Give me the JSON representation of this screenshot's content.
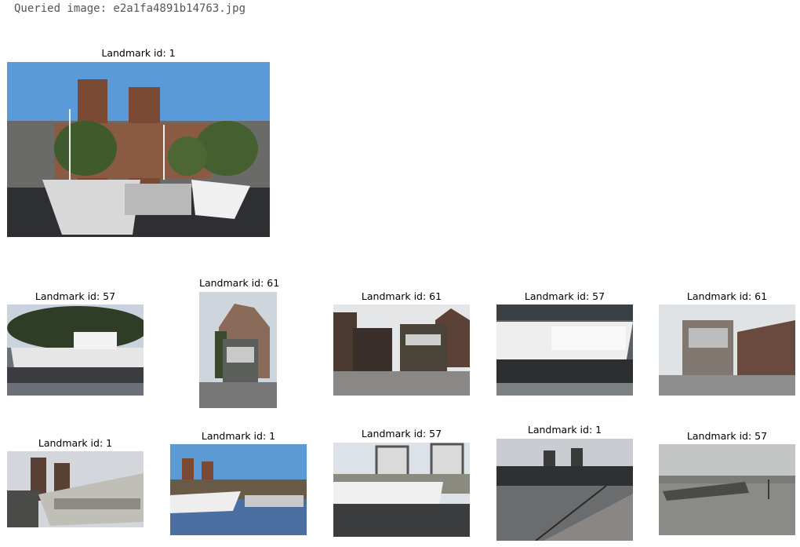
{
  "header": {
    "query_label": "Queried image: e2a1fa4891b14763.jpg"
  },
  "query": {
    "title": "Landmark id: 1",
    "scene": "city-hall-harbor"
  },
  "results": [
    {
      "title": "Landmark id: 57",
      "scene": "ferry-boat"
    },
    {
      "title": "Landmark id: 61",
      "scene": "tram-street"
    },
    {
      "title": "Landmark id: 61",
      "scene": "trams-pub"
    },
    {
      "title": "Landmark id: 57",
      "scene": "ferry-boat"
    },
    {
      "title": "Landmark id: 61",
      "scene": "tram-street"
    },
    {
      "title": "Landmark id: 1",
      "scene": "tram-harbor"
    },
    {
      "title": "Landmark id: 1",
      "scene": "city-hall-harbor"
    },
    {
      "title": "Landmark id: 57",
      "scene": "ferry-dock"
    },
    {
      "title": "Landmark id: 1",
      "scene": "city-hall-harbor"
    },
    {
      "title": "Landmark id: 57",
      "scene": "river-barge"
    }
  ]
}
